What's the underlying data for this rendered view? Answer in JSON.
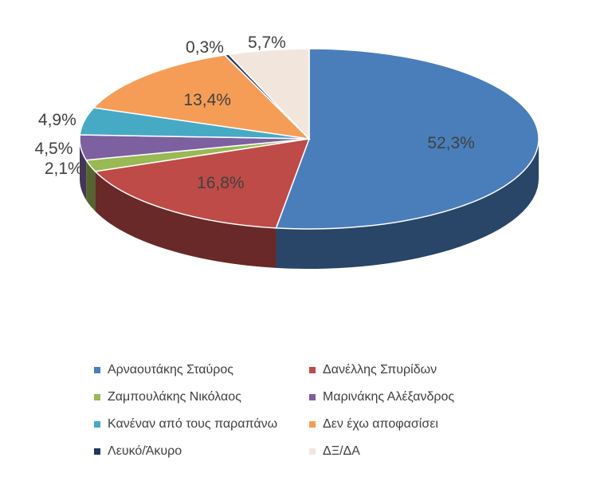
{
  "chart_data": {
    "type": "pie",
    "title": "",
    "style": "3d",
    "legend_position": "bottom",
    "series": [
      {
        "name": "Αρναουτάκης Σταύρος",
        "value": 52.3,
        "label": "52,3%",
        "color": "#4a7ebb"
      },
      {
        "name": "Δανέλλης Σπυρίδων",
        "value": 16.8,
        "label": "16,8%",
        "color": "#be4b48"
      },
      {
        "name": "Ζαμπουλάκης Νικόλαος",
        "value": 2.1,
        "label": "2,1%",
        "color": "#98b954"
      },
      {
        "name": "Μαρινάκης Αλέξανδρος",
        "value": 4.5,
        "label": "4,5%",
        "color": "#7d60a0"
      },
      {
        "name": "Κανέναν από τους παραπάνω",
        "value": 4.9,
        "label": "4,9%",
        "color": "#46aac5"
      },
      {
        "name": "Δεν έχω αποφασίσει",
        "value": 13.4,
        "label": "13,4%",
        "color": "#f59d56"
      },
      {
        "name": "Λευκό/Άκυρο",
        "value": 0.3,
        "label": "0,3%",
        "color": "#1f3864"
      },
      {
        "name": "ΔΞ/ΔΑ",
        "value": 5.7,
        "label": "5,7%",
        "color": "#f2e6dc"
      }
    ]
  }
}
